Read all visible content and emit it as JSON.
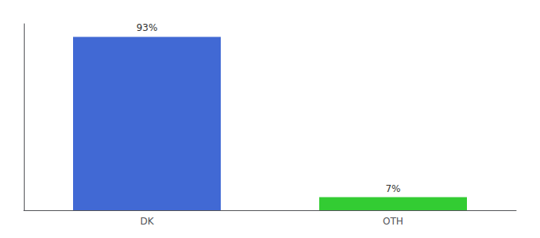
{
  "chart_data": {
    "type": "bar",
    "categories": [
      "DK",
      "OTH"
    ],
    "values": [
      93,
      7
    ],
    "value_labels": [
      "93%",
      "7%"
    ],
    "colors": [
      "#4169d4",
      "#33cc33"
    ],
    "ylim": [
      0,
      100
    ],
    "grid": false,
    "data_labels": true,
    "tick_labels": "x"
  }
}
